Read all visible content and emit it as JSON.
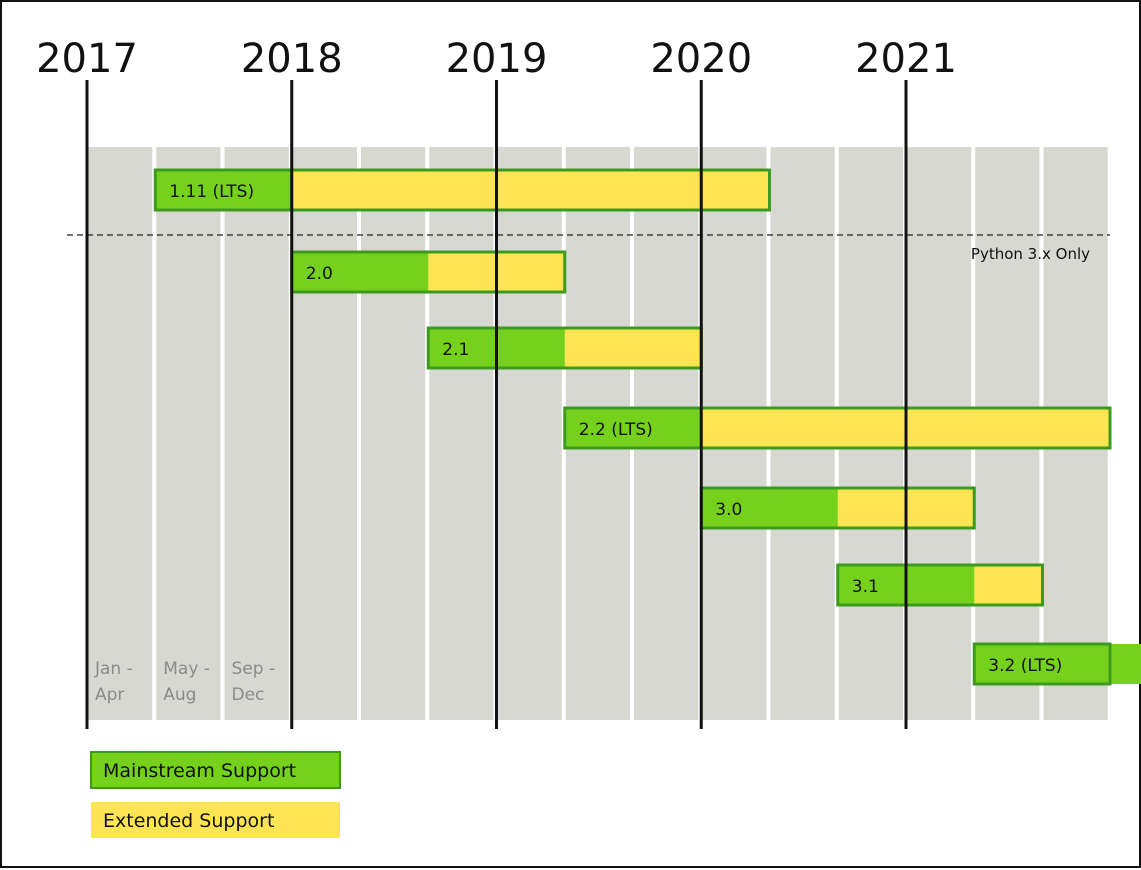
{
  "chart_data": {
    "type": "gantt",
    "title": "",
    "x_unit": "4-month periods",
    "year_labels": [
      "2017",
      "2018",
      "2019",
      "2020",
      "2021"
    ],
    "period_labels": [
      {
        "line1": "Jan -",
        "line2": "Apr"
      },
      {
        "line1": "May -",
        "line2": "Aug"
      },
      {
        "line1": "Sep -",
        "line2": "Dec"
      }
    ],
    "annotation": "Python 3.x Only",
    "annotation_after_release": "1.11 (LTS)",
    "releases": [
      {
        "label": "1.11 (LTS)",
        "mainstream": [
          "2017-05",
          "2018-01"
        ],
        "extended": [
          "2018-01",
          "2020-05"
        ]
      },
      {
        "label": "2.0",
        "mainstream": [
          "2018-01",
          "2018-09"
        ],
        "extended": [
          "2018-09",
          "2019-05"
        ]
      },
      {
        "label": "2.1",
        "mainstream": [
          "2018-09",
          "2019-05"
        ],
        "extended": [
          "2019-05",
          "2020-01"
        ]
      },
      {
        "label": "2.2 (LTS)",
        "mainstream": [
          "2019-05",
          "2020-01"
        ],
        "extended": [
          "2020-01",
          "2022-05"
        ]
      },
      {
        "label": "3.0",
        "mainstream": [
          "2020-01",
          "2020-09"
        ],
        "extended": [
          "2020-09",
          "2021-05"
        ]
      },
      {
        "label": "3.1",
        "mainstream": [
          "2020-09",
          "2021-05"
        ],
        "extended": [
          "2021-05",
          "2021-09"
        ]
      },
      {
        "label": "3.2 (LTS)",
        "mainstream": [
          "2021-05",
          "2022-05"
        ],
        "extended": [
          "2022-05",
          "2022-05"
        ]
      }
    ],
    "legend": [
      {
        "key": "mainstream",
        "label": "Mainstream Support",
        "color": "#76d11d"
      },
      {
        "key": "extended",
        "label": "Extended Support",
        "color": "#fde452"
      }
    ],
    "colors": {
      "period_column": "#d8d8d2",
      "bar_border": "#3c9a1e",
      "mainstream": "#76d11d",
      "extended": "#fde452",
      "year_line": "#111111"
    }
  }
}
